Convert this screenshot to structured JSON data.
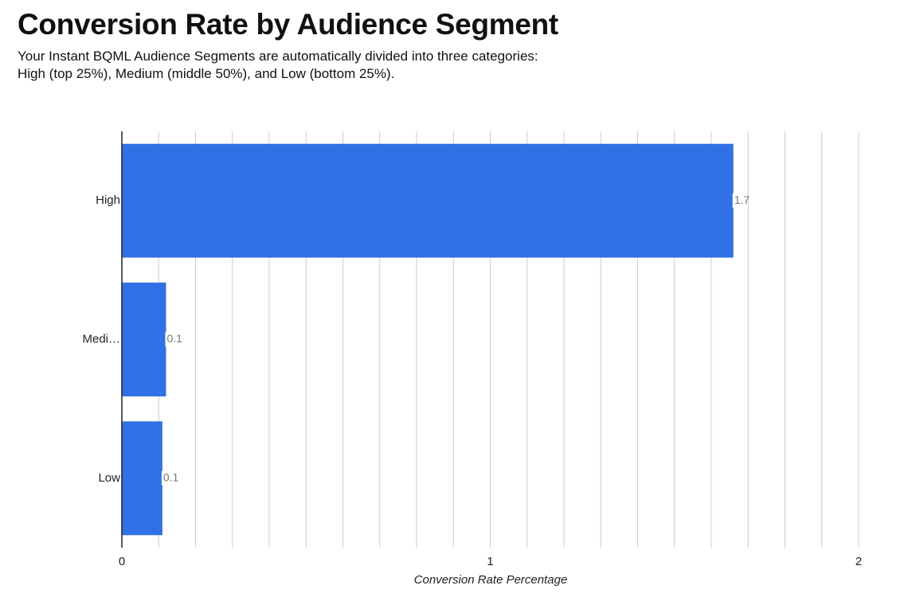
{
  "chart_data": {
    "type": "bar",
    "orientation": "horizontal",
    "title": "Conversion Rate by Audience Segment",
    "subtitle": "Your Instant BQML Audience Segments are automatically divided into three categories: High (top 25%), Medium (middle 50%), and Low (bottom 25%).",
    "x_label": "Conversion Rate Percentage",
    "categories": [
      "High",
      "Medi…",
      "Low"
    ],
    "values": [
      1.66,
      0.12,
      0.11
    ],
    "value_labels": [
      "1.7",
      "0.1",
      "0.1"
    ],
    "color": "#3071e5",
    "xlim": [
      0,
      2
    ],
    "xticks": [
      0,
      1,
      2
    ],
    "x_minor_ticks": [
      0.1,
      0.2,
      0.3,
      0.4,
      0.5,
      0.6,
      0.7,
      0.8,
      0.9,
      1.1,
      1.2,
      1.3,
      1.4,
      1.5,
      1.6,
      1.7,
      1.8,
      1.9
    ],
    "grid": true
  }
}
